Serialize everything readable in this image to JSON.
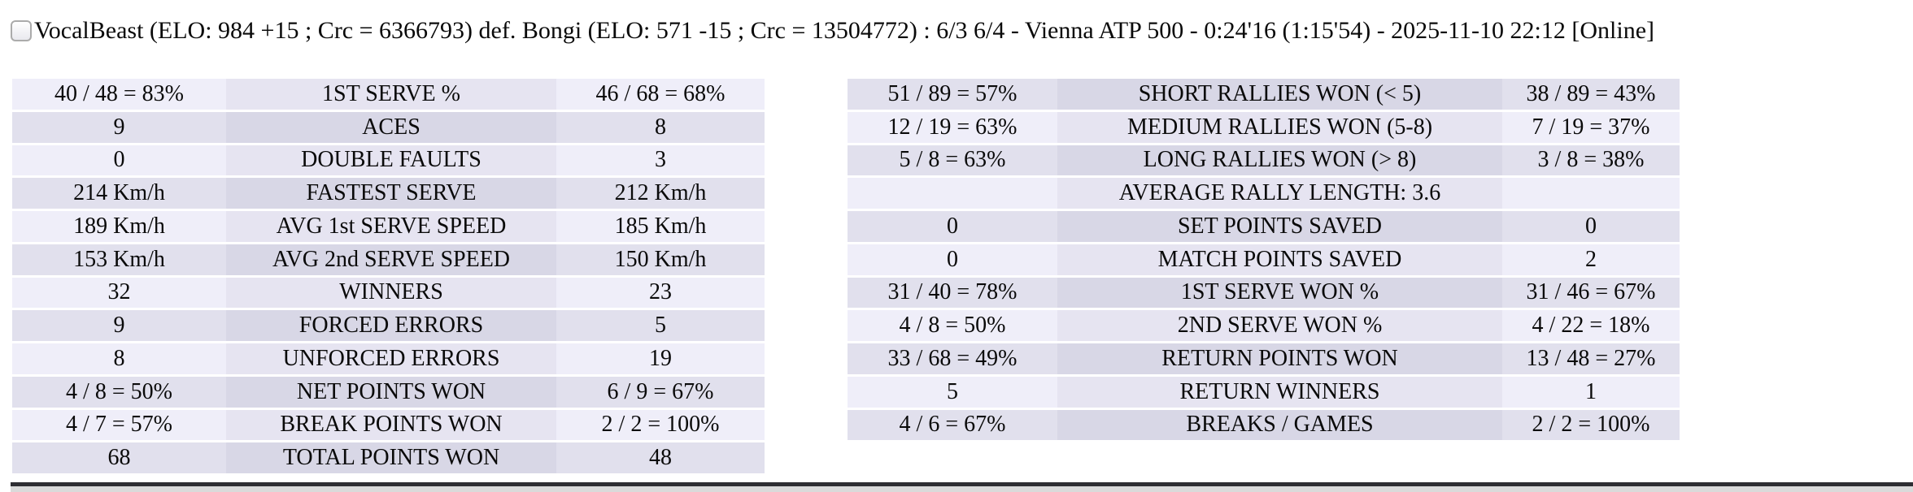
{
  "match_header": {
    "title": "VocalBeast (ELO: 984 +15 ; Crc = 6366793) def. Bongi (ELO: 571 -15 ; Crc = 13504772) : 6/3 6/4 - Vienna ATP 500 - 0:24'16 (1:15'54) - 2025-11-10 22:12 [Online]",
    "checkbox_checked": false
  },
  "stats_left": {
    "rows": [
      {
        "p1": "40 / 48 = 83%",
        "label": "1ST SERVE %",
        "p2": "46 / 68 = 68%"
      },
      {
        "p1": "9",
        "label": "ACES",
        "p2": "8"
      },
      {
        "p1": "0",
        "label": "DOUBLE FAULTS",
        "p2": "3"
      },
      {
        "p1": "214 Km/h",
        "label": "FASTEST SERVE",
        "p2": "212 Km/h"
      },
      {
        "p1": "189 Km/h",
        "label": "AVG 1st SERVE SPEED",
        "p2": "185 Km/h"
      },
      {
        "p1": "153 Km/h",
        "label": "AVG 2nd SERVE SPEED",
        "p2": "150 Km/h"
      },
      {
        "p1": "32",
        "label": "WINNERS",
        "p2": "23"
      },
      {
        "p1": "9",
        "label": "FORCED ERRORS",
        "p2": "5"
      },
      {
        "p1": "8",
        "label": "UNFORCED ERRORS",
        "p2": "19"
      },
      {
        "p1": "4 / 8 = 50%",
        "label": "NET POINTS WON",
        "p2": "6 / 9 = 67%"
      },
      {
        "p1": "4 / 7 = 57%",
        "label": "BREAK POINTS WON",
        "p2": "2 / 2 = 100%"
      },
      {
        "p1": "68",
        "label": "TOTAL POINTS WON",
        "p2": "48"
      }
    ]
  },
  "stats_right": {
    "rows": [
      {
        "p1": "51 / 89 = 57%",
        "label": "SHORT RALLIES WON (< 5)",
        "p2": "38 / 89 = 43%"
      },
      {
        "p1": "12 / 19 = 63%",
        "label": "MEDIUM RALLIES WON (5-8)",
        "p2": "7 / 19 = 37%"
      },
      {
        "p1": "5 / 8 = 63%",
        "label": "LONG RALLIES WON (> 8)",
        "p2": "3 / 8 = 38%"
      },
      {
        "p1": "",
        "label": "AVERAGE RALLY LENGTH: 3.6",
        "p2": ""
      },
      {
        "p1": "0",
        "label": "SET POINTS SAVED",
        "p2": "0"
      },
      {
        "p1": "0",
        "label": "MATCH POINTS SAVED",
        "p2": "2"
      },
      {
        "p1": "31 / 40 = 78%",
        "label": "1ST SERVE WON %",
        "p2": "31 / 46 = 67%"
      },
      {
        "p1": "4 / 8 = 50%",
        "label": "2ND SERVE WON %",
        "p2": "4 / 22 = 18%"
      },
      {
        "p1": "33 / 68 = 49%",
        "label": "RETURN POINTS WON",
        "p2": "13 / 48 = 27%"
      },
      {
        "p1": "5",
        "label": "RETURN WINNERS",
        "p2": "1"
      },
      {
        "p1": "4 / 6 = 67%",
        "label": "BREAKS / GAMES",
        "p2": "2 / 2 = 100%"
      }
    ]
  },
  "colors": {
    "row_light_side": "#EFEEF9",
    "row_light_center": "#E6E4F1",
    "row_dark_side": "#E1E0ED",
    "row_dark_center": "#D8D7E6",
    "separator_dark": "#2E2E33",
    "separator_grey": "#DADADA",
    "text": "#0A0A0A"
  }
}
